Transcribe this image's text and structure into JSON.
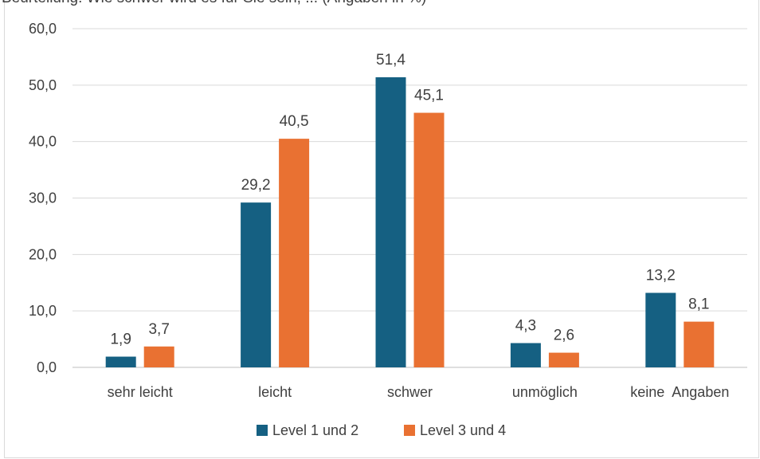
{
  "chart_data": {
    "type": "bar",
    "title": "Beurteilung: Wie schwer wird es für Sie sein, ... (Angaben in %)",
    "categories": [
      "sehr leicht",
      "leicht",
      "schwer",
      "unmöglich",
      "keine  Angaben"
    ],
    "series": [
      {
        "name": "Level 1 und 2",
        "color": "#156082",
        "values": [
          1.9,
          29.2,
          51.4,
          4.3,
          13.2
        ],
        "labels": [
          "1,9",
          "29,2",
          "51,4",
          "4,3",
          "13,2"
        ]
      },
      {
        "name": "Level 3 und 4",
        "color": "#E97132",
        "values": [
          3.7,
          40.5,
          45.1,
          2.6,
          8.1
        ],
        "labels": [
          "3,7",
          "40,5",
          "45,1",
          "2,6",
          "8,1"
        ]
      }
    ],
    "yticks": [
      "0,0",
      "10,0",
      "20,0",
      "30,0",
      "40,0",
      "50,0",
      "60,0"
    ],
    "ylim": [
      0,
      60
    ],
    "grid": true,
    "legend": "bottom"
  }
}
